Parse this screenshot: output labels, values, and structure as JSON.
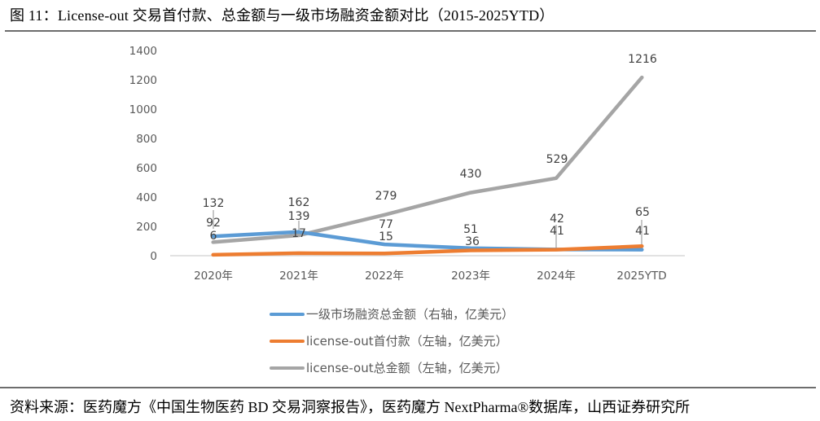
{
  "figure": {
    "title": "图 11：License-out 交易首付款、总金额与一级市场融资金额对比（2015-2025YTD）",
    "source": "资料来源：医药魔方《中国生物医药 BD 交易洞察报告》，医药魔方 NextPharma®数据库，山西证券研究所"
  },
  "chart_data": {
    "type": "line",
    "title": "License-out 交易首付款、总金额与一级市场融资金额对比（2015-2025YTD）",
    "xlabel": "",
    "ylabel": "",
    "ylim": [
      0,
      1400
    ],
    "yticks": [
      "1400",
      "1200",
      "1000",
      "800",
      "600",
      "400",
      "200",
      "0"
    ],
    "grid": false,
    "legend_position": "bottom",
    "categories": [
      "2020年",
      "2021年",
      "2022年",
      "2023年",
      "2024年",
      "2025YTD"
    ],
    "series": [
      {
        "name": "一级市场融资总金额（右轴，亿美元）",
        "color": "#5B9BD5",
        "values": [
          132,
          162,
          77,
          51,
          42,
          41
        ]
      },
      {
        "name": "license-out首付款（左轴，亿美元）",
        "color": "#ED7D31",
        "values": [
          6,
          17,
          15,
          36,
          41,
          65
        ]
      },
      {
        "name": "license-out总金额（左轴，亿美元）",
        "color": "#A5A5A5",
        "values": [
          92,
          139,
          279,
          430,
          529,
          1216
        ]
      }
    ]
  }
}
